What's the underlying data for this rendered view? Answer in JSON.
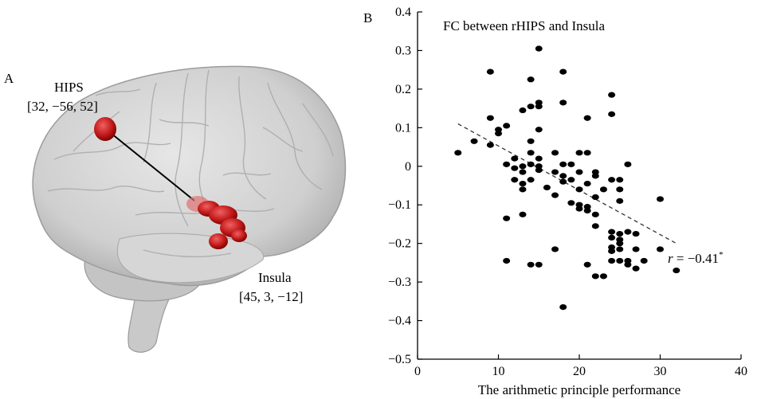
{
  "panel_a": {
    "label": "A",
    "hips": {
      "name": "HIPS",
      "coords": "[32, −56, 52]"
    },
    "insula": {
      "name": "Insula",
      "coords": "[45, 3, −12]"
    }
  },
  "panel_b": {
    "label": "B"
  },
  "chart_data": {
    "type": "scatter",
    "title": "FC between rHIPS and Insula",
    "xlabel": "The arithmetic principle performance",
    "ylabel": "",
    "xlim": [
      0,
      40
    ],
    "ylim": [
      -0.5,
      0.4
    ],
    "x_ticks": [
      0,
      10,
      20,
      30,
      40
    ],
    "x_tick_labels": [
      "0",
      "10",
      "20",
      "30",
      "40"
    ],
    "y_ticks": [
      -0.5,
      -0.4,
      -0.3,
      -0.2,
      -0.1,
      0,
      0.1,
      0.2,
      0.3,
      0.4
    ],
    "y_tick_labels": [
      "−0.5",
      "−0.4",
      "−0.3",
      "−0.2",
      "−0.1",
      "0",
      "0.1",
      "0.2",
      "0.3",
      "0.4"
    ],
    "grid": false,
    "annotation": {
      "r_symbol": "r",
      "r_text": " = −0.41",
      "significance": "*"
    },
    "trend_line": {
      "x": [
        5,
        32
      ],
      "y": [
        0.11,
        -0.2
      ],
      "style": "dashed"
    },
    "points": [
      [
        5,
        0.035
      ],
      [
        7,
        0.065
      ],
      [
        9,
        0.245
      ],
      [
        9,
        0.125
      ],
      [
        9,
        0.055
      ],
      [
        10,
        0.095
      ],
      [
        10,
        0.085
      ],
      [
        11,
        0.105
      ],
      [
        11,
        0.005
      ],
      [
        11,
        -0.135
      ],
      [
        11,
        -0.245
      ],
      [
        12,
        0.02
      ],
      [
        12,
        -0.005
      ],
      [
        12,
        -0.035
      ],
      [
        13,
        0.145
      ],
      [
        13,
        0.0
      ],
      [
        13,
        -0.015
      ],
      [
        13,
        -0.045
      ],
      [
        13,
        -0.06
      ],
      [
        13,
        -0.125
      ],
      [
        14,
        0.225
      ],
      [
        14,
        0.155
      ],
      [
        14,
        0.065
      ],
      [
        14,
        0.035
      ],
      [
        14,
        0.005
      ],
      [
        14,
        -0.035
      ],
      [
        14,
        -0.255
      ],
      [
        15,
        0.305
      ],
      [
        15,
        0.165
      ],
      [
        15,
        0.155
      ],
      [
        15,
        0.095
      ],
      [
        15,
        0.02
      ],
      [
        15,
        0.0
      ],
      [
        15,
        -0.01
      ],
      [
        15,
        -0.255
      ],
      [
        16,
        -0.055
      ],
      [
        17,
        0.035
      ],
      [
        17,
        -0.015
      ],
      [
        17,
        -0.075
      ],
      [
        17,
        -0.215
      ],
      [
        18,
        0.245
      ],
      [
        18,
        0.165
      ],
      [
        18,
        0.005
      ],
      [
        18,
        -0.025
      ],
      [
        18,
        -0.04
      ],
      [
        18,
        -0.365
      ],
      [
        19,
        0.005
      ],
      [
        19,
        -0.035
      ],
      [
        19,
        -0.095
      ],
      [
        20,
        0.035
      ],
      [
        20,
        -0.015
      ],
      [
        20,
        -0.06
      ],
      [
        20,
        -0.1
      ],
      [
        20,
        -0.11
      ],
      [
        21,
        0.125
      ],
      [
        21,
        0.035
      ],
      [
        21,
        -0.045
      ],
      [
        21,
        -0.105
      ],
      [
        21,
        -0.115
      ],
      [
        21,
        -0.255
      ],
      [
        22,
        -0.015
      ],
      [
        22,
        -0.025
      ],
      [
        22,
        -0.08
      ],
      [
        22,
        -0.125
      ],
      [
        22,
        -0.155
      ],
      [
        22,
        -0.285
      ],
      [
        23,
        -0.06
      ],
      [
        23,
        -0.285
      ],
      [
        24,
        0.185
      ],
      [
        24,
        0.135
      ],
      [
        24,
        -0.035
      ],
      [
        24,
        -0.17
      ],
      [
        24,
        -0.185
      ],
      [
        24,
        -0.21
      ],
      [
        24,
        -0.22
      ],
      [
        24,
        -0.245
      ],
      [
        25,
        -0.035
      ],
      [
        25,
        -0.06
      ],
      [
        25,
        -0.09
      ],
      [
        25,
        -0.175
      ],
      [
        25,
        -0.19
      ],
      [
        25,
        -0.2
      ],
      [
        25,
        -0.215
      ],
      [
        25,
        -0.245
      ],
      [
        26,
        0.005
      ],
      [
        26,
        -0.17
      ],
      [
        26,
        -0.245
      ],
      [
        26,
        -0.255
      ],
      [
        27,
        -0.175
      ],
      [
        27,
        -0.215
      ],
      [
        27,
        -0.265
      ],
      [
        28,
        -0.245
      ],
      [
        30,
        -0.085
      ],
      [
        30,
        -0.215
      ],
      [
        32,
        -0.27
      ]
    ]
  }
}
